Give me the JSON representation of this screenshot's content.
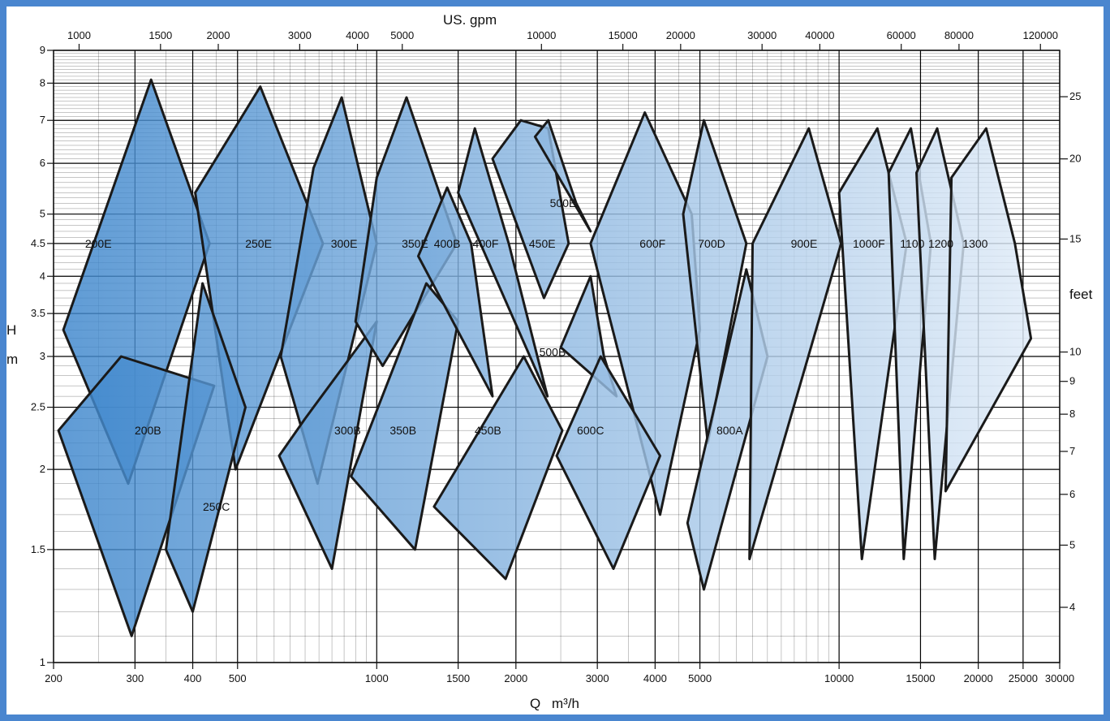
{
  "chart_data": {
    "type": "area",
    "title": "",
    "x_axis": {
      "label_lines": [
        "Q",
        "m³/h"
      ],
      "scale": "log",
      "range": [
        200,
        30000
      ],
      "ticks": [
        200,
        300,
        400,
        500,
        1000,
        1500,
        2000,
        3000,
        4000,
        5000,
        10000,
        15000,
        20000,
        25000,
        30000
      ]
    },
    "top_axis": {
      "label": "US. gpm",
      "ticks": [
        1000,
        1500,
        2000,
        3000,
        4000,
        5000,
        10000,
        15000,
        20000,
        30000,
        40000,
        60000,
        80000,
        120000
      ]
    },
    "y_axis": {
      "label_lines": [
        "H",
        "m"
      ],
      "scale": "log",
      "range": [
        1,
        9
      ],
      "ticks": [
        1,
        1.5,
        2,
        2.5,
        3,
        3.5,
        4,
        4.5,
        5,
        6,
        7,
        8,
        9
      ]
    },
    "right_axis": {
      "label": "feet",
      "ticks": [
        4,
        5,
        6,
        7,
        8,
        9,
        10,
        15,
        20,
        25
      ]
    },
    "grid": true,
    "colors": {
      "fill_start": "#3d86cc",
      "fill_end": "#e3edf8",
      "outline": "#1a1a1a",
      "border": "#4a86cf"
    },
    "series": [
      {
        "name": "200E",
        "label_at": [
          250,
          4.5
        ],
        "points": [
          [
            210,
            3.3
          ],
          [
            325,
            8.1
          ],
          [
            435,
            4.5
          ],
          [
            290,
            1.9
          ]
        ]
      },
      {
        "name": "200B",
        "label_at": [
          320,
          2.3
        ],
        "points": [
          [
            205,
            2.3
          ],
          [
            280,
            3.0
          ],
          [
            445,
            2.7
          ],
          [
            295,
            1.1
          ]
        ]
      },
      {
        "name": "250E",
        "label_at": [
          555,
          4.5
        ],
        "points": [
          [
            405,
            5.4
          ],
          [
            560,
            7.9
          ],
          [
            765,
            4.5
          ],
          [
            495,
            2.0
          ]
        ]
      },
      {
        "name": "250C",
        "label_at": [
          450,
          1.75
        ],
        "points": [
          [
            350,
            1.5
          ],
          [
            420,
            3.9
          ],
          [
            520,
            2.5
          ],
          [
            400,
            1.2
          ]
        ]
      },
      {
        "name": "300E",
        "label_at": [
          850,
          4.5
        ],
        "points": [
          [
            620,
            3.0
          ],
          [
            730,
            5.9
          ],
          [
            840,
            7.6
          ],
          [
            1000,
            4.5
          ],
          [
            745,
            1.9
          ]
        ]
      },
      {
        "name": "300B",
        "label_at": [
          865,
          2.3
        ],
        "points": [
          [
            615,
            2.1
          ],
          [
            700,
            2.4
          ],
          [
            1000,
            3.4
          ],
          [
            800,
            1.4
          ]
        ]
      },
      {
        "name": "350E",
        "label_at": [
          1210,
          4.5
        ],
        "points": [
          [
            900,
            3.4
          ],
          [
            1000,
            5.7
          ],
          [
            1160,
            7.6
          ],
          [
            1490,
            4.5
          ],
          [
            1030,
            2.9
          ]
        ]
      },
      {
        "name": "350B",
        "label_at": [
          1140,
          2.3
        ],
        "points": [
          [
            880,
            1.95
          ],
          [
            1280,
            3.9
          ],
          [
            1500,
            3.4
          ],
          [
            1210,
            1.5
          ]
        ]
      },
      {
        "name": "400B",
        "label_at": [
          1420,
          4.5
        ],
        "points": [
          [
            1230,
            4.3
          ],
          [
            1420,
            5.5
          ],
          [
            1600,
            4.5
          ],
          [
            1780,
            2.6
          ]
        ]
      },
      {
        "name": "400F",
        "label_at": [
          1720,
          4.5
        ],
        "points": [
          [
            1500,
            5.4
          ],
          [
            1630,
            6.8
          ],
          [
            1930,
            4.5
          ],
          [
            2340,
            2.6
          ]
        ]
      },
      {
        "name": "450E",
        "label_at": [
          2280,
          4.5
        ],
        "points": [
          [
            1780,
            6.1
          ],
          [
            2050,
            7.0
          ],
          [
            2350,
            6.8
          ],
          [
            2600,
            4.5
          ],
          [
            2300,
            3.7
          ]
        ]
      },
      {
        "name": "450B",
        "label_at": [
          1740,
          2.3
        ],
        "points": [
          [
            1330,
            1.75
          ],
          [
            2080,
            3.0
          ],
          [
            2520,
            2.3
          ],
          [
            1900,
            1.35
          ]
        ]
      },
      {
        "name": "500E",
        "label_at": [
          2530,
          5.2
        ],
        "points": [
          [
            2200,
            6.6
          ],
          [
            2350,
            7.0
          ],
          [
            2700,
            5.2
          ],
          [
            2900,
            4.7
          ]
        ]
      },
      {
        "name": "500B",
        "label_at": [
          2400,
          3.05
        ],
        "points": [
          [
            2500,
            3.1
          ],
          [
            2900,
            4.0
          ],
          [
            3100,
            3.0
          ],
          [
            3300,
            2.6
          ]
        ]
      },
      {
        "name": "600F",
        "label_at": [
          3950,
          4.5
        ],
        "points": [
          [
            2900,
            4.5
          ],
          [
            3800,
            7.2
          ],
          [
            4800,
            5.0
          ],
          [
            5000,
            3.3
          ],
          [
            4100,
            1.7
          ]
        ]
      },
      {
        "name": "600C",
        "label_at": [
          2900,
          2.3
        ],
        "points": [
          [
            2450,
            2.1
          ],
          [
            3050,
            3.0
          ],
          [
            4100,
            2.1
          ],
          [
            3250,
            1.4
          ]
        ]
      },
      {
        "name": "700D",
        "label_at": [
          5300,
          4.5
        ],
        "points": [
          [
            4600,
            5.0
          ],
          [
            5100,
            7.0
          ],
          [
            6300,
            4.5
          ],
          [
            5200,
            2.2
          ]
        ]
      },
      {
        "name": "800A",
        "label_at": [
          5800,
          2.3
        ],
        "points": [
          [
            4700,
            1.65
          ],
          [
            6300,
            4.1
          ],
          [
            7000,
            3.0
          ],
          [
            5100,
            1.3
          ]
        ]
      },
      {
        "name": "900E",
        "label_at": [
          8400,
          4.5
        ],
        "points": [
          [
            6500,
            4.5
          ],
          [
            8600,
            6.8
          ],
          [
            10100,
            4.5
          ],
          [
            6400,
            1.45
          ]
        ]
      },
      {
        "name": "1000F",
        "label_at": [
          11600,
          4.5
        ],
        "points": [
          [
            10000,
            5.4
          ],
          [
            12100,
            6.8
          ],
          [
            14000,
            4.5
          ],
          [
            11200,
            1.45
          ]
        ]
      },
      {
        "name": "1100",
        "label_at": [
          14400,
          4.5
        ],
        "points": [
          [
            12800,
            5.8
          ],
          [
            14300,
            6.8
          ],
          [
            15800,
            4.5
          ],
          [
            13800,
            1.45
          ]
        ]
      },
      {
        "name": "1200",
        "label_at": [
          16600,
          4.5
        ],
        "points": [
          [
            14700,
            5.8
          ],
          [
            16300,
            6.8
          ],
          [
            18600,
            4.5
          ],
          [
            16100,
            1.45
          ]
        ]
      },
      {
        "name": "1300",
        "label_at": [
          19700,
          4.5
        ],
        "points": [
          [
            17500,
            5.7
          ],
          [
            20800,
            6.8
          ],
          [
            24000,
            4.5
          ],
          [
            26000,
            3.2
          ],
          [
            17000,
            1.85
          ]
        ]
      }
    ]
  }
}
